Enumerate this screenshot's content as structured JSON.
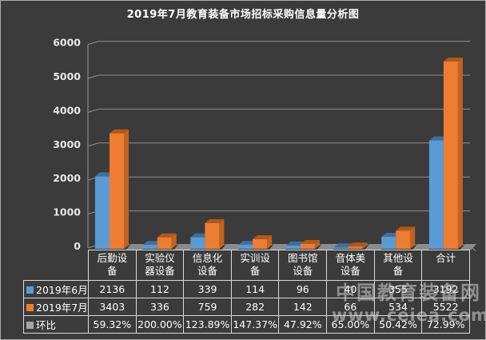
{
  "chart_data": {
    "type": "bar",
    "style": "3d-clustered-column",
    "title": "2019年7月教育装备市场招标采购信息量分析图",
    "categories": [
      "后勤设备",
      "实验仪器设备",
      "信息化设备",
      "实训设备",
      "图书馆设备",
      "音体美设备",
      "其他设备",
      "合计"
    ],
    "series": [
      {
        "name": "2019年6月",
        "color": "#5b9bd5",
        "values": [
          2136,
          112,
          339,
          114,
          96,
          40,
          355,
          3192
        ]
      },
      {
        "name": "2019年7月",
        "color": "#ed7d31",
        "values": [
          3403,
          336,
          759,
          282,
          142,
          66,
          534,
          5522
        ]
      }
    ],
    "ratio_row": {
      "name": "环比",
      "color": "#a5a5a5",
      "values": [
        "59.32%",
        "200.00%",
        "123.89%",
        "147.37%",
        "47.92%",
        "65.00%",
        "50.42%",
        "72.99%"
      ]
    },
    "xlabel": "",
    "ylabel": "",
    "ylim": [
      0,
      6000
    ],
    "ytick_interval": 1000,
    "ytick_labels": [
      "0",
      "1000",
      "2000",
      "3000",
      "4000",
      "5000",
      "6000"
    ],
    "grid": true,
    "legend_position": "data-table-left"
  },
  "watermark": {
    "line1": "中国教育装备网",
    "line2": "www.ceiea.com"
  },
  "colors": {
    "background": "#3b3b3b",
    "frame_border": "#ababab",
    "gridline": "#8f8f8f",
    "axis": "#9a9a9a",
    "tick_text": "#e8e8e8",
    "table_border": "#d9d9d9",
    "table_text": "#ffffff",
    "floor_tile": "#8b8b8b",
    "june_front": "#5b9bd5",
    "june_top": "#3f6f9f",
    "july_front": "#ed7d31",
    "july_top": "#b05818",
    "july_side": "#c0641f",
    "watermark": "#d7d7d7"
  }
}
